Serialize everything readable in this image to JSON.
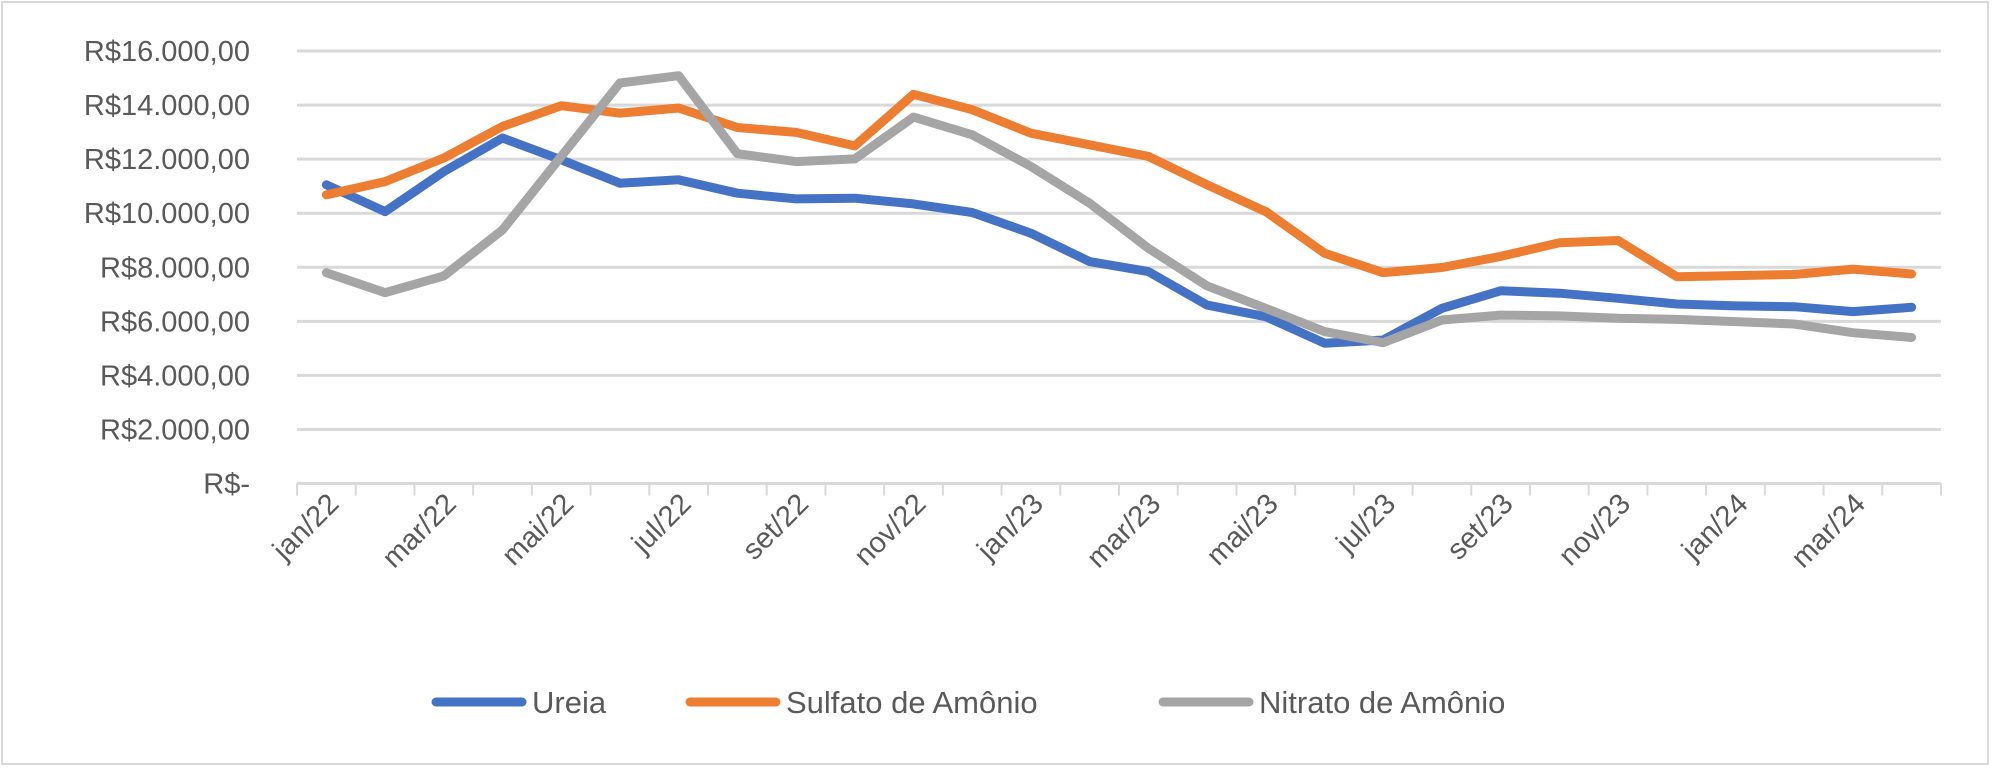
{
  "chart_data": {
    "type": "line",
    "title": "",
    "xlabel": "",
    "ylabel": "",
    "ylim": [
      0,
      16000
    ],
    "y_ticks": [
      "R$-",
      "R$2.000,00",
      "R$4.000,00",
      "R$6.000,00",
      "R$8.000,00",
      "R$10.000,00",
      "R$12.000,00",
      "R$14.000,00",
      "R$16.000,00"
    ],
    "y_tick_values": [
      0,
      2000,
      4000,
      6000,
      8000,
      10000,
      12000,
      14000,
      16000
    ],
    "grid": true,
    "legend_position": "bottom",
    "categories": [
      "jan/22",
      "fev/22",
      "mar/22",
      "abr/22",
      "mai/22",
      "jun/22",
      "jul/22",
      "ago/22",
      "set/22",
      "out/22",
      "nov/22",
      "dez/22",
      "jan/23",
      "fev/23",
      "mar/23",
      "abr/23",
      "mai/23",
      "jun/23",
      "jul/23",
      "ago/23",
      "set/23",
      "out/23",
      "nov/23",
      "dez/23",
      "jan/24",
      "fev/24",
      "mar/24",
      "abr/24"
    ],
    "x_tick_labels": [
      "jan/22",
      "mar/22",
      "mai/22",
      "jul/22",
      "set/22",
      "nov/22",
      "jan/23",
      "mar/23",
      "mai/23",
      "jul/23",
      "set/23",
      "nov/23",
      "jan/24",
      "mar/24"
    ],
    "series": [
      {
        "name": "Ureia",
        "color": "#4472c4",
        "values": [
          11050,
          10060,
          11540,
          12780,
          11975,
          11110,
          11235,
          10740,
          10530,
          10555,
          10345,
          10025,
          9260,
          8210,
          7840,
          6600,
          6170,
          5190,
          5310,
          6480,
          7130,
          7040,
          6850,
          6640,
          6570,
          6540,
          6360,
          6520
        ]
      },
      {
        "name": "Sulfato de Amônio",
        "color": "#ed7d31",
        "values": [
          10680,
          11170,
          12040,
          13210,
          13975,
          13700,
          13890,
          13170,
          12990,
          12490,
          14400,
          13830,
          12960,
          12530,
          12100,
          11050,
          10060,
          8520,
          7800,
          7990,
          8400,
          8910,
          8990,
          7650,
          7690,
          7730,
          7930,
          7750
        ]
      },
      {
        "name": "Nitrato de Amônio",
        "color": "#a5a5a5",
        "values": [
          7800,
          7060,
          7680,
          9380,
          12100,
          14815,
          15085,
          12200,
          11910,
          12010,
          13555,
          12900,
          11730,
          10370,
          8700,
          7310,
          6480,
          5620,
          5210,
          6050,
          6230,
          6200,
          6110,
          6070,
          5990,
          5900,
          5580,
          5400
        ]
      }
    ]
  }
}
